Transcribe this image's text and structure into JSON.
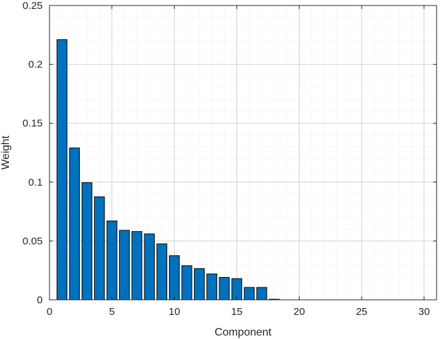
{
  "chart_data": {
    "type": "bar",
    "title": "",
    "xlabel": "Component",
    "ylabel": "Weight",
    "xlim": [
      0,
      31
    ],
    "ylim": [
      0,
      0.25
    ],
    "xticks": [
      0,
      5,
      10,
      15,
      20,
      25,
      30
    ],
    "xtick_labels": [
      "0",
      "5",
      "10",
      "15",
      "20",
      "25",
      "30"
    ],
    "yticks": [
      0,
      0.05,
      0.1,
      0.15,
      0.2,
      0.25
    ],
    "ytick_labels": [
      "0",
      "0.05",
      "0.1",
      "0.15",
      "0.2",
      "0.25"
    ],
    "grid": true,
    "minor_grid": true,
    "bar_color": "#0072BD",
    "x": [
      1,
      2,
      3,
      4,
      5,
      6,
      7,
      8,
      9,
      10,
      11,
      12,
      13,
      14,
      15,
      16,
      17,
      18,
      19,
      20,
      21,
      22,
      23,
      24,
      25,
      26,
      27,
      28,
      29,
      30
    ],
    "values": [
      0.221,
      0.129,
      0.0995,
      0.0875,
      0.067,
      0.059,
      0.058,
      0.056,
      0.0475,
      0.0375,
      0.029,
      0.0265,
      0.022,
      0.019,
      0.018,
      0.0105,
      0.0105,
      0.0005,
      0,
      0,
      0,
      0,
      0,
      0,
      0,
      0,
      0,
      0,
      0,
      0
    ]
  }
}
